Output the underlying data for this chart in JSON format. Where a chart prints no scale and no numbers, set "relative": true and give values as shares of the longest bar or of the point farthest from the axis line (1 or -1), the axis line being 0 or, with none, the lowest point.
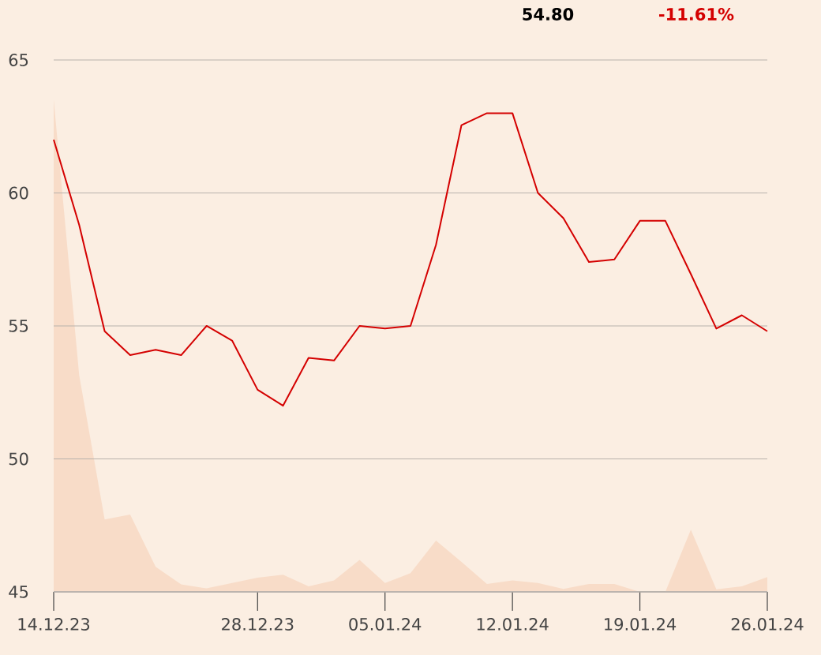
{
  "chart_data": [
    {
      "type": "line",
      "annotations": [
        "54.80",
        "-11.61%"
      ],
      "categories": [
        "14.12.23",
        null,
        null,
        null,
        null,
        null,
        null,
        null,
        "28.12.23",
        null,
        null,
        null,
        null,
        "05.01.24",
        null,
        null,
        null,
        null,
        "12.01.24",
        null,
        null,
        null,
        null,
        "19.01.24",
        null,
        null,
        null,
        null,
        "26.01.24"
      ],
      "series": [
        {
          "color": "#d40000",
          "values": [
            62.0,
            58.8,
            54.8,
            53.9,
            54.1,
            53.9,
            55.0,
            54.45,
            52.6,
            52.0,
            53.8,
            53.7,
            55.0,
            54.9,
            55.0,
            58.05,
            62.55,
            63.0,
            63.0,
            60.0,
            59.05,
            57.4,
            57.5,
            58.95,
            58.95,
            56.95,
            54.9,
            55.4,
            54.8
          ]
        }
      ],
      "ylim": [
        45,
        65
      ],
      "yticks": [
        45,
        50,
        55,
        60,
        65
      ],
      "grid": "y"
    },
    {
      "type": "area",
      "relative": true,
      "tick_labels": false,
      "categories": [
        "14.12.23",
        null,
        null,
        null,
        null,
        null,
        null,
        null,
        "28.12.23",
        null,
        null,
        null,
        null,
        "05.01.24",
        null,
        null,
        null,
        null,
        "12.01.24",
        null,
        null,
        null,
        null,
        "19.01.24",
        null,
        null,
        null,
        null,
        "26.01.24"
      ],
      "series": [
        {
          "color": "#f8dcc8",
          "values": [
            1,
            0.44,
            0.147,
            0.157,
            0.051,
            0.015,
            0.007,
            0.018,
            0.029,
            0.035,
            0.011,
            0.023,
            0.065,
            0.018,
            0.038,
            0.104,
            0.061,
            0.016,
            0.023,
            0.018,
            0.006,
            0.016,
            0.016,
            0,
            0,
            0.126,
            0.005,
            0.011,
            0.03
          ]
        }
      ]
    }
  ]
}
